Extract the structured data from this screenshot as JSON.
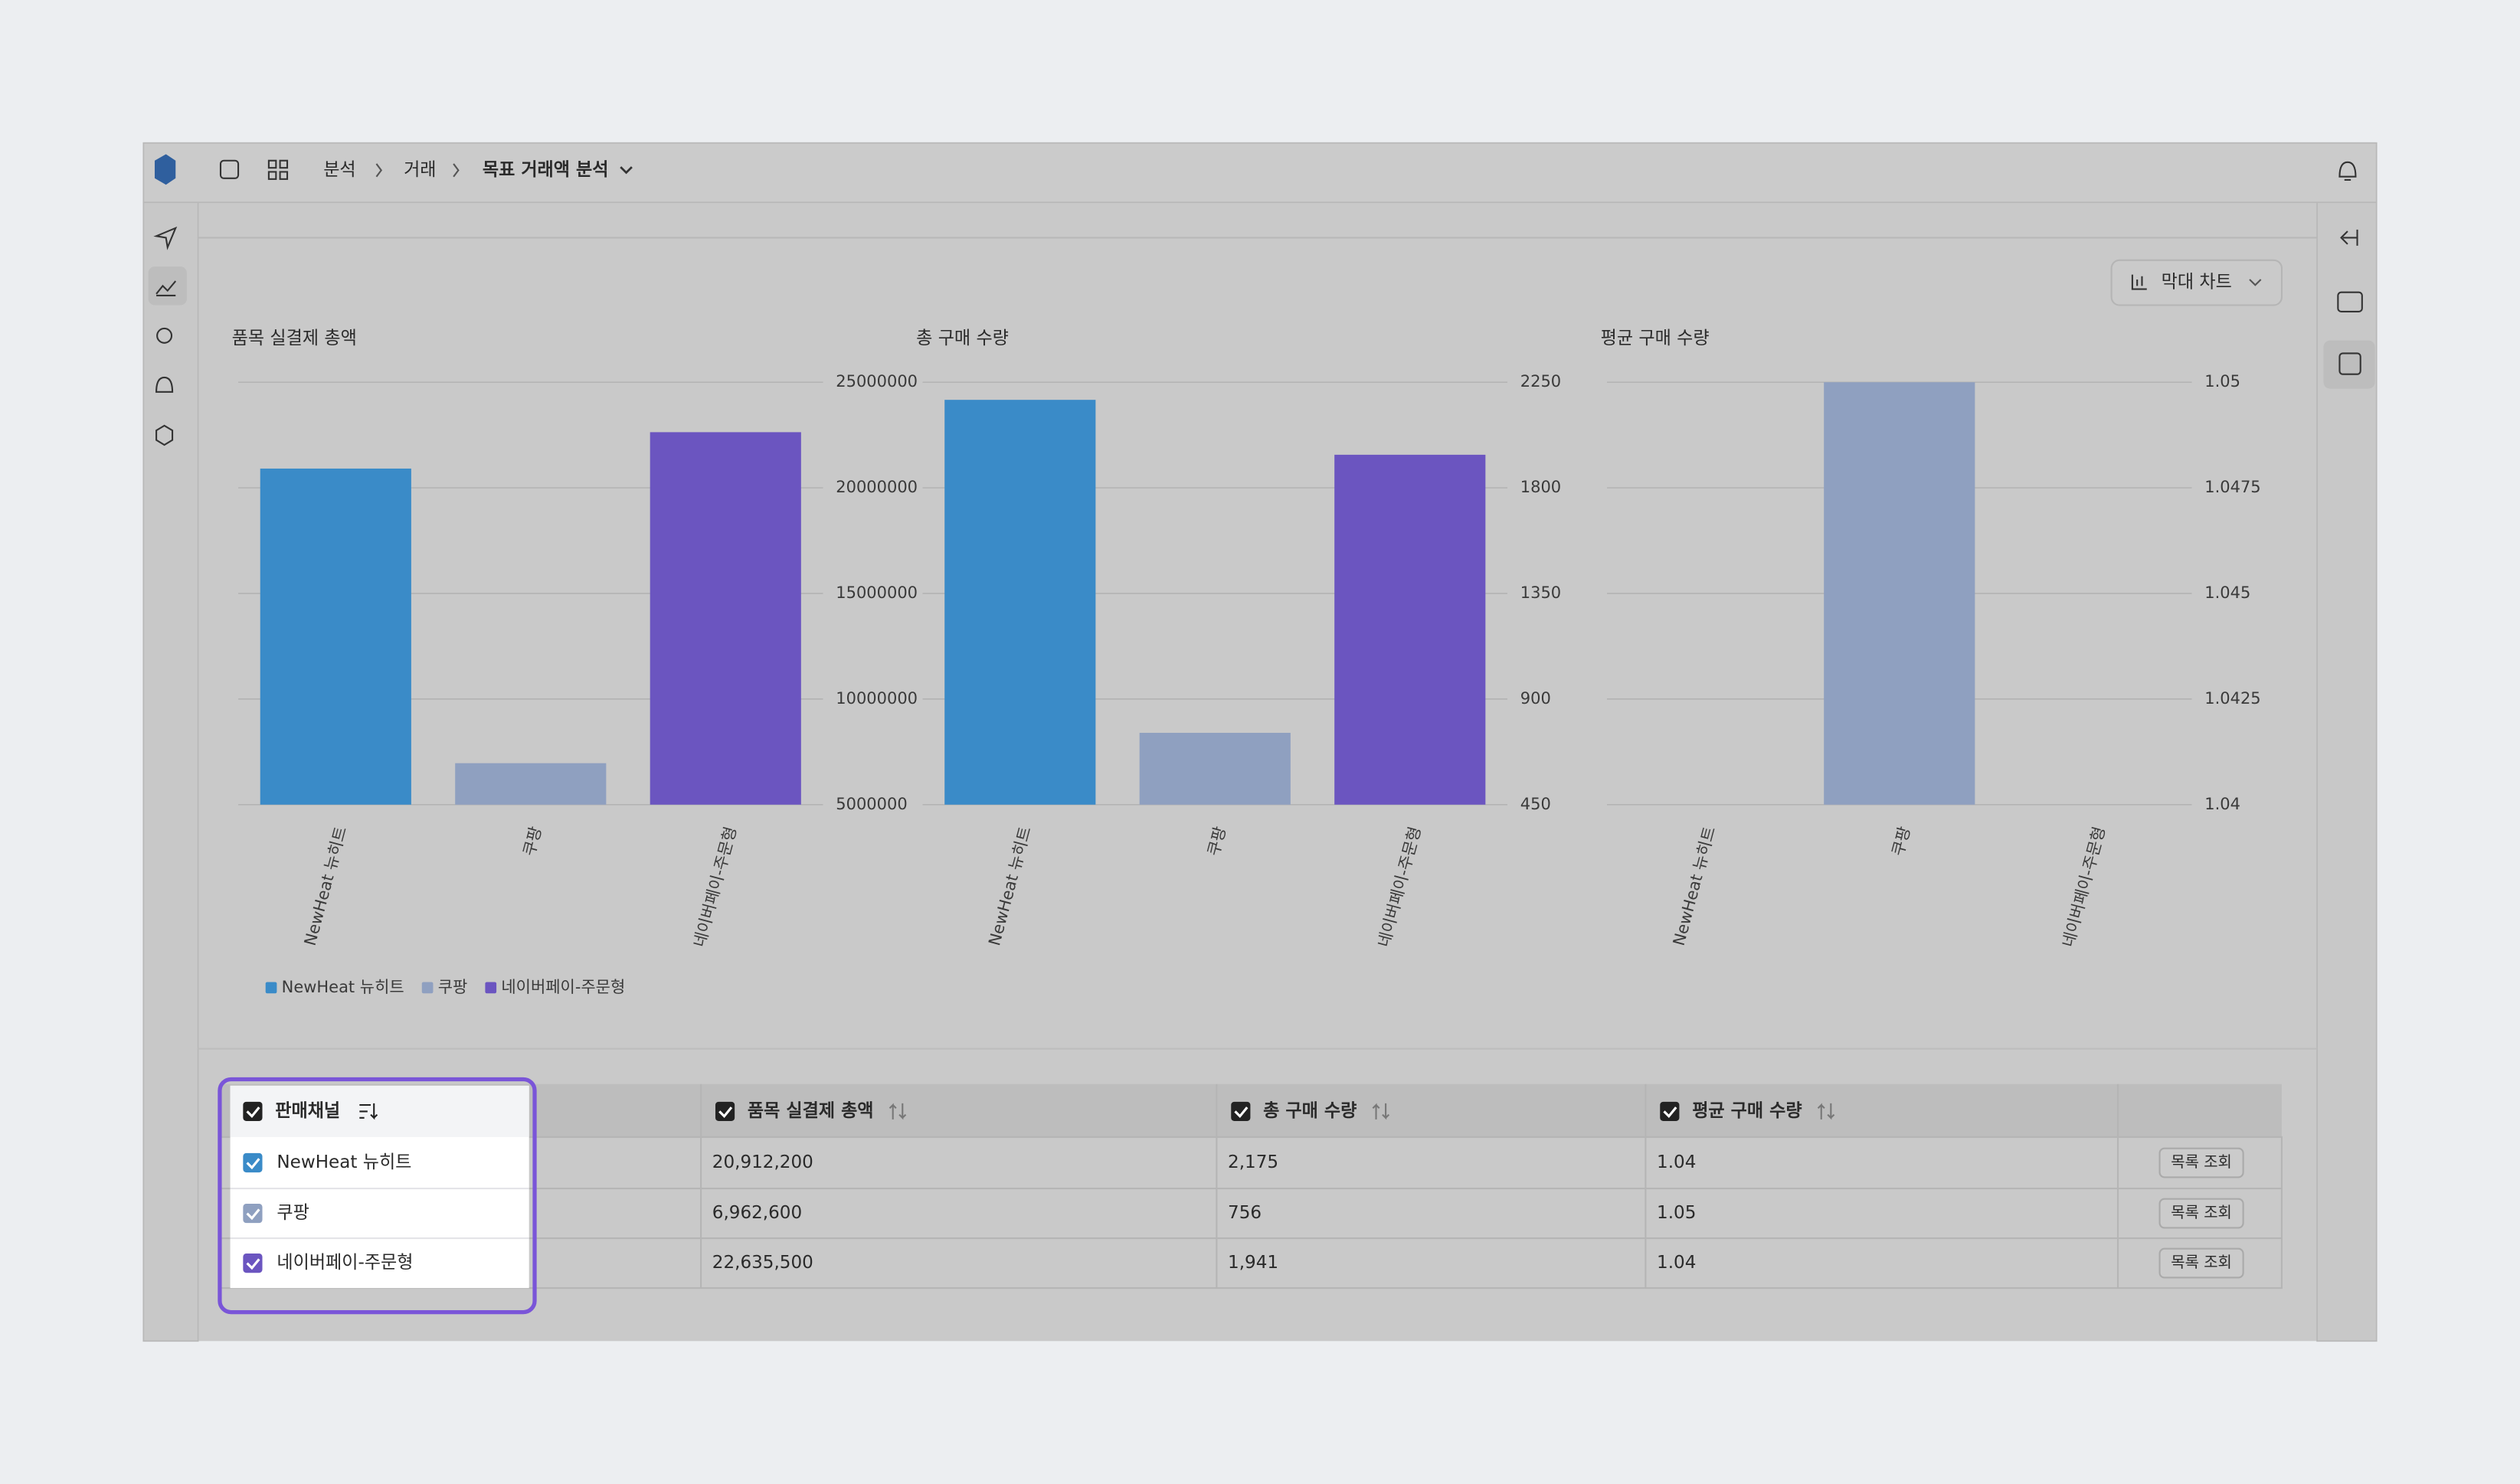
{
  "breadcrumb": [
    "분석",
    "거래",
    "목표 거래액 분석"
  ],
  "chart_switch": "막대 차트",
  "chart_data": [
    {
      "type": "bar",
      "title": "품목 실결제 총액",
      "categories": [
        "NewHeat 뉴히트",
        "쿠팡",
        "네이버페이-주문형"
      ],
      "values": [
        20912200,
        6962600,
        22635500
      ],
      "colors": [
        "#3a8bc8",
        "#8fa0c0",
        "#6b55c0"
      ],
      "ylim": [
        5000000,
        25000000
      ],
      "yticks": [
        5000000,
        10000000,
        15000000,
        20000000,
        25000000
      ],
      "grid": true
    },
    {
      "type": "bar",
      "title": "총 구매 수량",
      "categories": [
        "NewHeat 뉴히트",
        "쿠팡",
        "네이버페이-주문형"
      ],
      "values": [
        2175,
        756,
        1941
      ],
      "colors": [
        "#3a8bc8",
        "#8fa0c0",
        "#6b55c0"
      ],
      "ylim": [
        450,
        2250
      ],
      "yticks": [
        450,
        900,
        1350,
        1800,
        2250
      ],
      "grid": true
    },
    {
      "type": "bar",
      "title": "평균 구매 수량",
      "categories": [
        "NewHeat 뉴히트",
        "쿠팡",
        "네이버페이-주문형"
      ],
      "values": [
        1.04,
        1.05,
        1.04
      ],
      "colors": [
        "#3a8bc8",
        "#8fa0c0",
        "#6b55c0"
      ],
      "ylim": [
        1.04,
        1.05
      ],
      "yticks": [
        1.04,
        1.0425,
        1.045,
        1.0475,
        1.05
      ],
      "grid": true
    }
  ],
  "legend": [
    {
      "name": "NewHeat 뉴히트",
      "color": "#3a8bc8"
    },
    {
      "name": "쿠팡",
      "color": "#8fa0c0"
    },
    {
      "name": "네이버페이-주문형",
      "color": "#6b55c0"
    }
  ],
  "table": {
    "headers": [
      "판매채널",
      "품목 실결제 총액",
      "총 구매 수량",
      "평균 구매 수량"
    ],
    "rows": [
      [
        "NewHeat 뉴히트",
        "20,912,200",
        "2,175",
        "1.04",
        "목록 조회"
      ],
      [
        "쿠팡",
        "6,962,600",
        "756",
        "1.05",
        "목록 조회"
      ],
      [
        "네이버페이-주문형",
        "22,635,500",
        "1,941",
        "1.04",
        "목록 조회"
      ]
    ]
  }
}
